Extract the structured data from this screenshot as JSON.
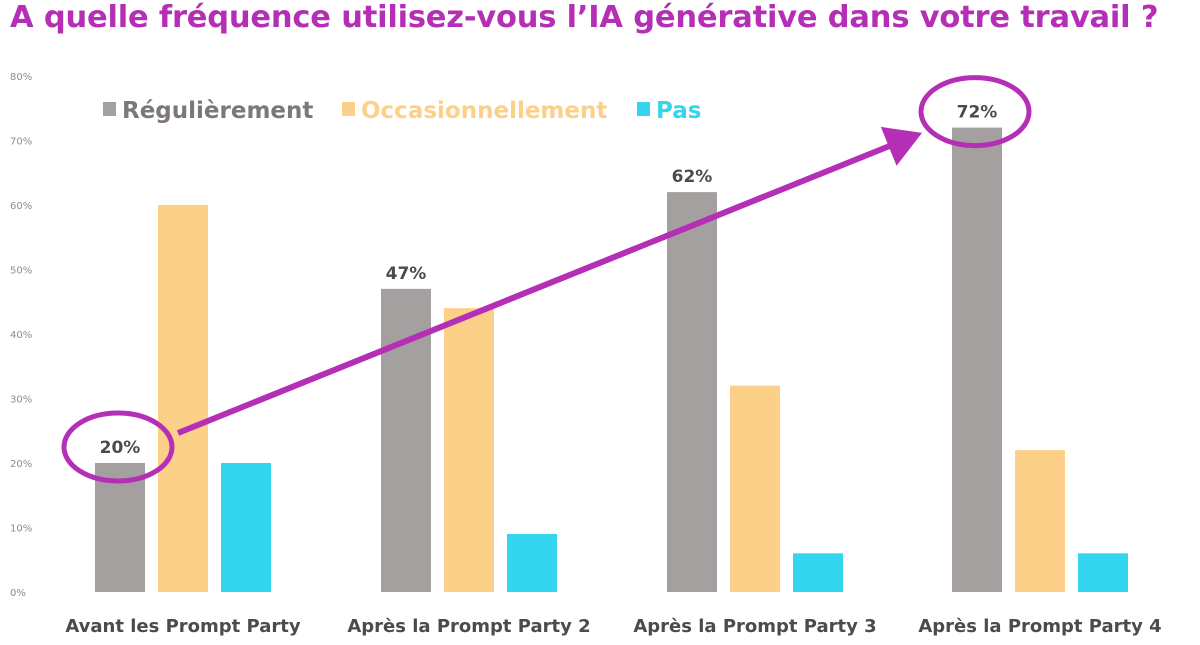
{
  "title": "A quelle fréquence utilisez-vous l’IA générative dans votre travail ?",
  "colors": {
    "title": "#b42fb5",
    "annotation": "#b42fb5",
    "regulierement": "#a5a0a0",
    "occasionnellement": "#fdd08a",
    "pas": "#34d5ef",
    "legend_regulierement_text": "#7d7777"
  },
  "chart_data": {
    "type": "bar",
    "title": "A quelle fréquence utilisez-vous l’IA générative dans votre travail ?",
    "categories": [
      "Avant les Prompt Party",
      "Après la Prompt Party 2",
      "Après la Prompt Party 3",
      "Après la Prompt Party 4"
    ],
    "series": [
      {
        "name": "Régulièrement",
        "values": [
          20,
          47,
          62,
          72
        ],
        "color": "#a5a0a0"
      },
      {
        "name": "Occasionnellement",
        "values": [
          60,
          44,
          32,
          22
        ],
        "color": "#fdd08a"
      },
      {
        "name": "Pas",
        "values": [
          20,
          9,
          6,
          6
        ],
        "color": "#34d5ef"
      }
    ],
    "data_labels": [
      {
        "series": "Régulièrement",
        "category": "Avant les Prompt Party",
        "text": "20%",
        "circled": true
      },
      {
        "series": "Régulièrement",
        "category": "Après la Prompt Party 2",
        "text": "47%",
        "circled": false
      },
      {
        "series": "Régulièrement",
        "category": "Après la Prompt Party 3",
        "text": "62%",
        "circled": false
      },
      {
        "series": "Régulièrement",
        "category": "Après la Prompt Party 4",
        "text": "72%",
        "circled": true
      }
    ],
    "yticks": [
      "0%",
      "10%",
      "20%",
      "30%",
      "40%",
      "50%",
      "60%",
      "70%",
      "80%"
    ],
    "ylim": [
      0,
      80
    ],
    "xlabel": "",
    "ylabel": "",
    "grid": false,
    "legend_position": "top-left",
    "annotation": "trend arrow from the 20% label to the 72% label"
  }
}
